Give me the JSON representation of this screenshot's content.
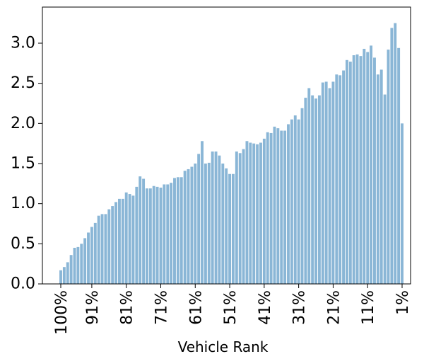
{
  "chart_data": {
    "type": "bar",
    "title": "",
    "xlabel": "Vehicle Rank",
    "ylabel": "",
    "ylim": [
      0,
      3.45
    ],
    "bar_color": "#8ab6d6",
    "y_ticks": [
      "0.0",
      "0.5",
      "1.0",
      "1.5",
      "2.0",
      "2.5",
      "3.0"
    ],
    "x_ticks": [
      {
        "label": "100%",
        "index": 0
      },
      {
        "label": "91%",
        "index": 9
      },
      {
        "label": "81%",
        "index": 19
      },
      {
        "label": "71%",
        "index": 29
      },
      {
        "label": "61%",
        "index": 39
      },
      {
        "label": "51%",
        "index": 49
      },
      {
        "label": "41%",
        "index": 59
      },
      {
        "label": "31%",
        "index": 69
      },
      {
        "label": "21%",
        "index": 79
      },
      {
        "label": "11%",
        "index": 89
      },
      {
        "label": "1%",
        "index": 99
      }
    ],
    "values": [
      0.17,
      0.21,
      0.27,
      0.36,
      0.45,
      0.46,
      0.5,
      0.57,
      0.64,
      0.71,
      0.76,
      0.85,
      0.87,
      0.87,
      0.93,
      0.97,
      1.02,
      1.06,
      1.06,
      1.14,
      1.12,
      1.1,
      1.21,
      1.34,
      1.31,
      1.19,
      1.19,
      1.22,
      1.21,
      1.2,
      1.24,
      1.24,
      1.26,
      1.32,
      1.33,
      1.33,
      1.41,
      1.43,
      1.46,
      1.5,
      1.62,
      1.78,
      1.5,
      1.51,
      1.65,
      1.65,
      1.6,
      1.5,
      1.44,
      1.37,
      1.37,
      1.65,
      1.63,
      1.68,
      1.78,
      1.76,
      1.75,
      1.74,
      1.76,
      1.81,
      1.89,
      1.88,
      1.96,
      1.94,
      1.91,
      1.91,
      1.99,
      2.05,
      2.1,
      2.05,
      2.19,
      2.32,
      2.44,
      2.35,
      2.31,
      2.35,
      2.51,
      2.52,
      2.44,
      2.52,
      2.61,
      2.6,
      2.66,
      2.79,
      2.77,
      2.85,
      2.86,
      2.84,
      2.93,
      2.89,
      2.97,
      2.82,
      2.61,
      2.67,
      2.36,
      2.92,
      3.19,
      3.25,
      2.94,
      2.0
    ]
  }
}
